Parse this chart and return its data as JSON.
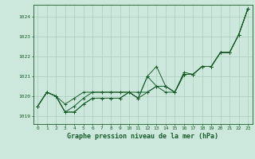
{
  "background_color": "#cce8dc",
  "grid_color": "#aaccbb",
  "line_color": "#1a5c2a",
  "title": "Graphe pression niveau de la mer (hPa)",
  "xlim": [
    -0.5,
    23.5
  ],
  "ylim": [
    1018.6,
    1024.6
  ],
  "yticks": [
    1019,
    1020,
    1021,
    1022,
    1023,
    1024
  ],
  "xticks": [
    0,
    1,
    2,
    3,
    4,
    5,
    6,
    7,
    8,
    9,
    10,
    11,
    12,
    13,
    14,
    15,
    16,
    17,
    18,
    19,
    20,
    21,
    22,
    23
  ],
  "series": [
    [
      1019.5,
      1020.2,
      1020.0,
      1019.2,
      1019.2,
      1019.6,
      1019.9,
      1019.9,
      1019.9,
      1019.9,
      1020.2,
      1019.9,
      1020.2,
      1020.5,
      1020.2,
      1020.2,
      1021.2,
      1021.1,
      1021.5,
      1021.5,
      1022.2,
      1022.2,
      1023.1,
      1024.4
    ],
    [
      1019.5,
      1020.2,
      1020.0,
      1019.2,
      1019.2,
      1019.6,
      1019.9,
      1019.9,
      1019.9,
      1019.9,
      1020.2,
      1019.9,
      1021.0,
      1021.5,
      1020.5,
      1020.2,
      1021.1,
      1021.1,
      1021.5,
      1021.5,
      1022.2,
      1022.2,
      1023.1,
      1024.4
    ],
    [
      1019.5,
      1020.2,
      1020.0,
      1019.2,
      1019.5,
      1019.9,
      1020.2,
      1020.2,
      1020.2,
      1020.2,
      1020.2,
      1019.9,
      1021.0,
      1020.5,
      1020.5,
      1020.2,
      1021.1,
      1021.1,
      1021.5,
      1021.5,
      1022.2,
      1022.2,
      1023.1,
      1024.4
    ],
    [
      1019.5,
      1020.2,
      1020.0,
      1019.6,
      1019.9,
      1020.2,
      1020.2,
      1020.2,
      1020.2,
      1020.2,
      1020.2,
      1020.2,
      1020.2,
      1020.5,
      1020.5,
      1020.2,
      1021.1,
      1021.1,
      1021.5,
      1021.5,
      1022.2,
      1022.2,
      1023.1,
      1024.4
    ]
  ]
}
